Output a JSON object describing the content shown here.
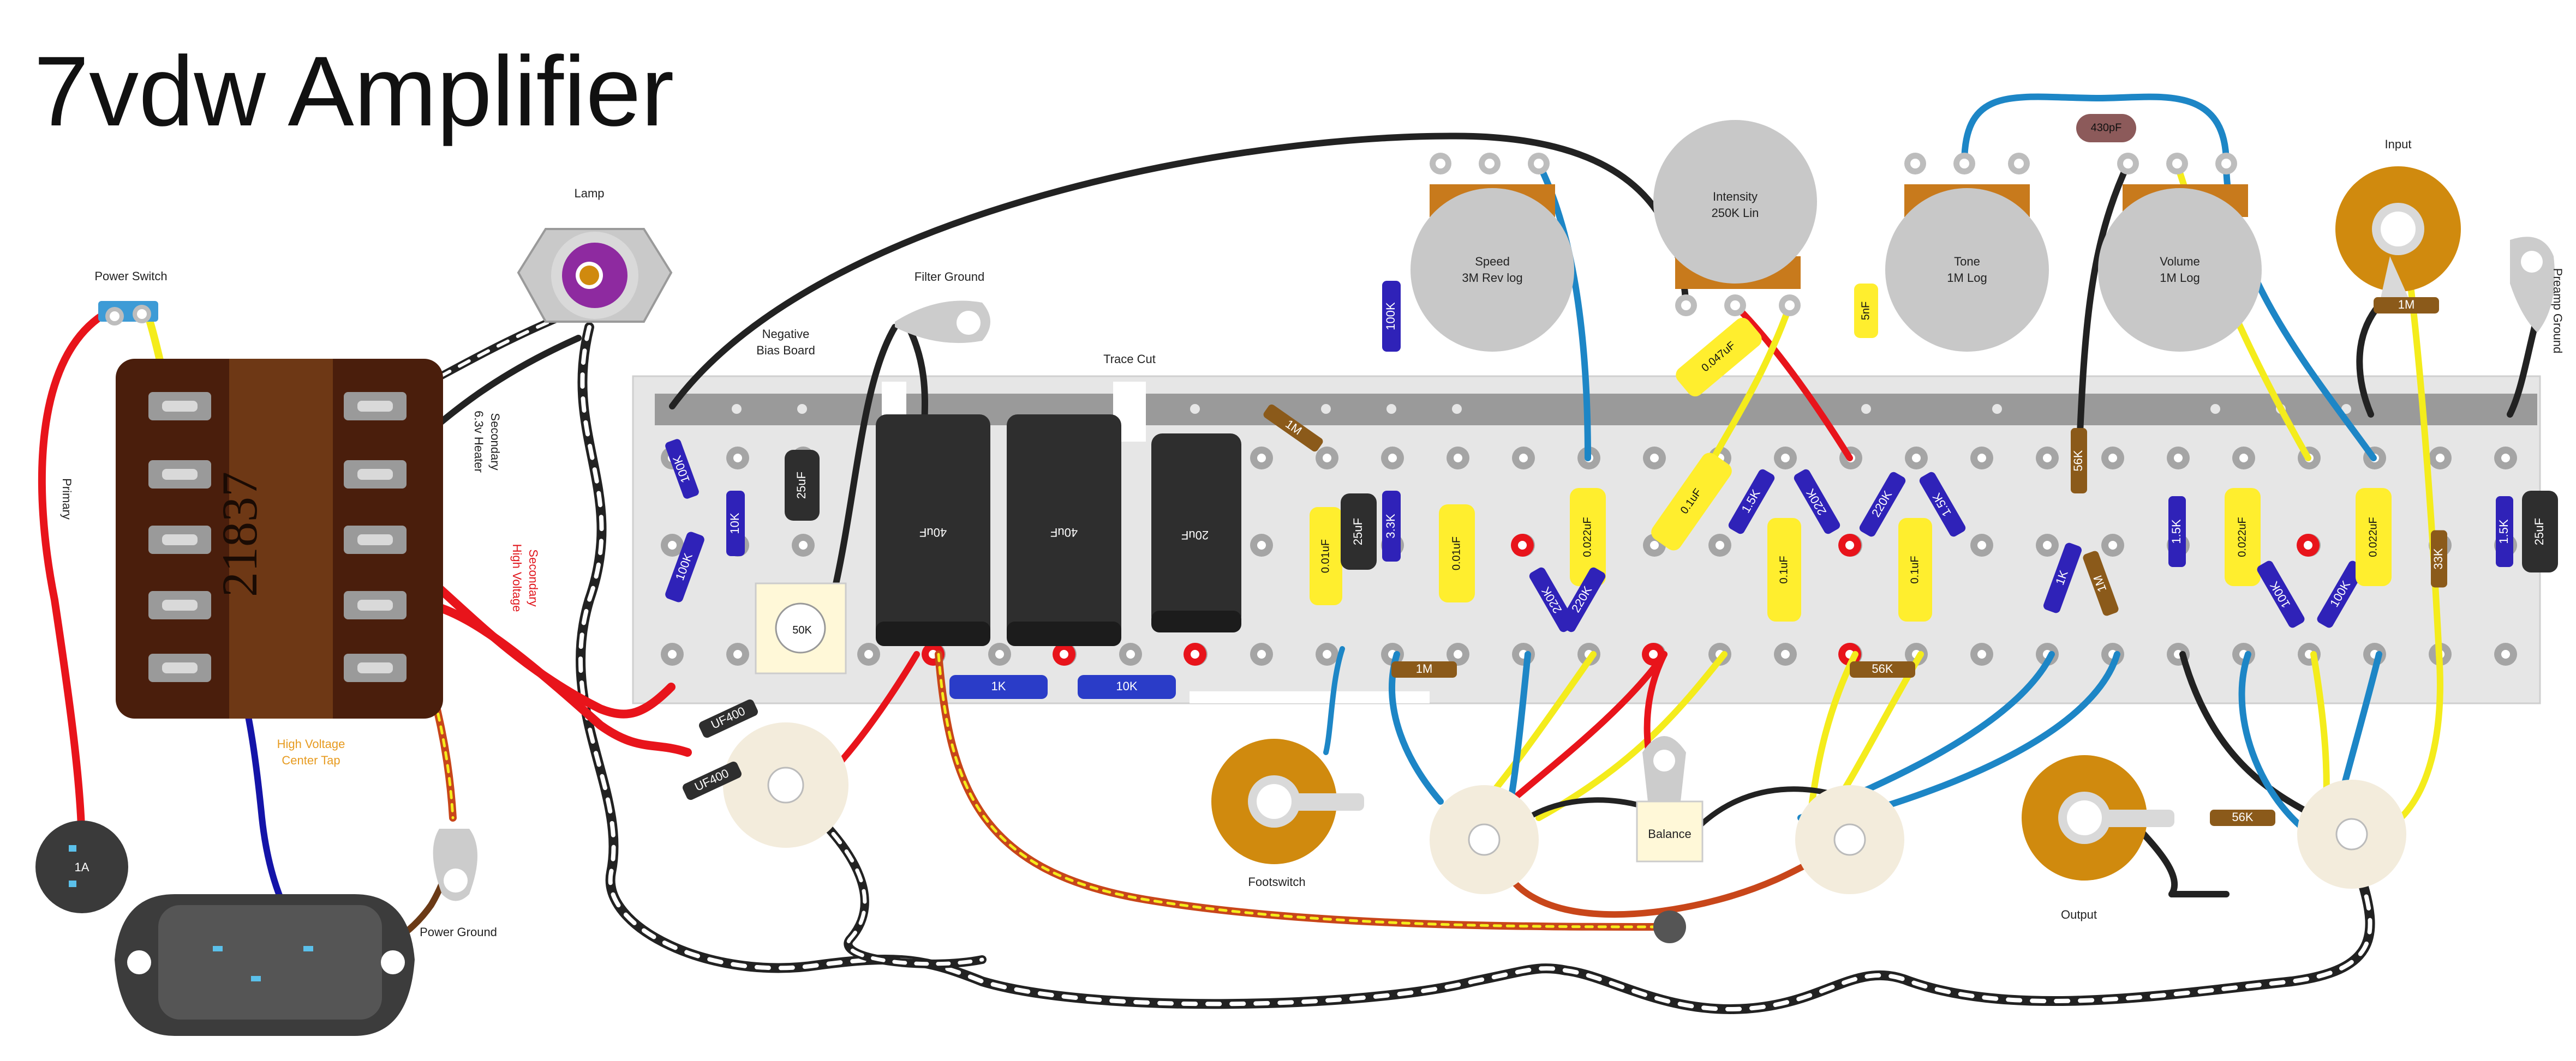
{
  "title": "7vdw Amplifier",
  "labels": {
    "power_switch": "Power Switch",
    "lamp": "Lamp",
    "negative_bias_line1": "Negative",
    "negative_bias_line2": "Bias Board",
    "filter_ground": "Filter Ground",
    "trace_cut": "Trace Cut",
    "primary": "Primary",
    "heater_line1": "6.3v Heater",
    "heater_line2": "Secondary",
    "hv_line1": "High Voltage",
    "hv_line2": "Secondary",
    "hv_ct_line1": "High Voltage",
    "hv_ct_line2": "Center Tap",
    "power_ground": "Power Ground",
    "footswitch": "Footswitch",
    "balance": "Balance",
    "output": "Output",
    "input": "Input",
    "preamp_ground": "Preamp Ground",
    "fuse": "1A",
    "transformer_id": "21837"
  },
  "pots": {
    "speed_name": "Speed",
    "speed_value": "3M Rev log",
    "intensity_name": "Intensity",
    "intensity_value": "250K Lin",
    "tone_name": "Tone",
    "tone_value": "1M Log",
    "volume_name": "Volume",
    "volume_value": "1M Log",
    "bias_trim": "50K"
  },
  "components": {
    "cap_430pf": "430pF",
    "cap_5nf": "5nF",
    "cap_0047uf": "0.047uF",
    "res_100k_speed": "100K",
    "res_1m_input": "1M",
    "res_100k_bias": "100K",
    "res_10k_bias": "10K",
    "res_100k_bias2": "100K",
    "cap_25uf_bias": "25uF",
    "filter_cap_1": "40uF",
    "filter_cap_2": "40uF",
    "filter_cap_3": "20uF",
    "res_1m_top": "1M",
    "cap_001uf_a": "0.01uF",
    "cap_25uf_a": "25uF",
    "res_33k": "3.3K",
    "cap_001uf_b": "0.01uF",
    "cap_0022uf_a": "0.022uF",
    "cap_01uf_diag": "0.1uF",
    "res_15k_a": "1.5K",
    "res_220k_a": "220K",
    "res_220k_b": "220K",
    "res_15k_b": "1.5K",
    "res_220k_c": "220K",
    "res_220k_d": "220K",
    "cap_01uf_a": "0.1uF",
    "cap_01uf_b": "0.1uF",
    "res_56k_top": "56K",
    "res_1k": "1K",
    "res_1m_mid": "1M",
    "res_15k_c": "1.5K",
    "cap_0022uf_b": "0.022uF",
    "res_100k_e": "100K",
    "res_100k_f": "100K",
    "cap_0022uf_c": "0.022uF",
    "res_33k_b": "33K",
    "res_15k_d": "1.5K",
    "cap_25uf_b": "25uF",
    "res_1m_bottom": "1M",
    "res_56k_bottom": "56K",
    "res_56k_output": "56K",
    "res_1k_blue": "1K",
    "res_10k_blue": "10K",
    "diode_1": "UF400",
    "diode_2": "UF400"
  },
  "colors": {
    "board": "#e6e6e6",
    "rail": "#9a9a9a",
    "transformer": "#4a1e0c",
    "cap_yellow": "#ffee2e",
    "resistor_blue": "#2f22b8",
    "resistor_brown": "#8b5a1a",
    "pot_grey": "#c8c8c8",
    "jack_orange": "#d08a0e",
    "wire_red": "#e8141b",
    "wire_blue": "#1d86c6",
    "wire_yellow": "#f4ec1c",
    "wire_black": "#222222",
    "wire_navy": "#1414a8",
    "wire_brown": "#6b3a16",
    "wire_orange_dash": "#c8461a",
    "label_red": "#e0141b",
    "label_orange": "#e79b20"
  }
}
